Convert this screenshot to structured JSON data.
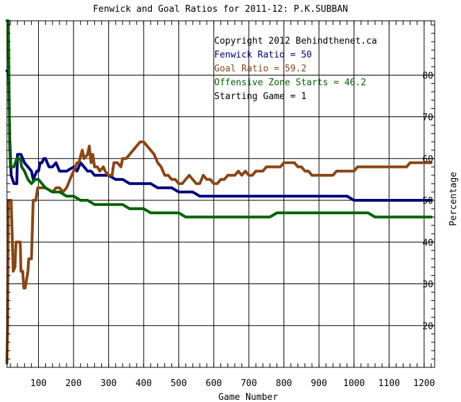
{
  "chart_data": {
    "type": "line",
    "title": "Fenwick and Goal Ratios for 2011-12: P.K.SUBBAN",
    "xlabel": "Game Number",
    "ylabel": "Percentage",
    "xlim": [
      10,
      1230
    ],
    "ylim": [
      10,
      93
    ],
    "x_ticks": [
      100,
      200,
      300,
      400,
      500,
      600,
      700,
      800,
      900,
      1000,
      1100,
      1200
    ],
    "y_ticks": [
      20,
      30,
      40,
      50,
      60,
      70,
      80
    ],
    "x_minor_step": 20,
    "y_axis_side": "right",
    "grid": true,
    "annotations": [
      {
        "text": "Copyright 2012 Behindthenet.ca",
        "color": "#000000"
      },
      {
        "text": "Fenwick Ratio = 50",
        "color": "#000080"
      },
      {
        "text": "Goal Ratio = 59.2",
        "color": "#8b4513"
      },
      {
        "text": "Offensive Zone Starts = 46.2",
        "color": "#006400"
      },
      {
        "text": "Starting Game = 1",
        "color": "#000000"
      }
    ],
    "series": [
      {
        "color": "#000080",
        "points": [
          [
            10,
            81
          ],
          [
            15,
            81
          ],
          [
            18,
            65
          ],
          [
            22,
            56
          ],
          [
            30,
            54
          ],
          [
            38,
            54
          ],
          [
            40,
            61
          ],
          [
            50,
            61
          ],
          [
            55,
            60
          ],
          [
            60,
            59
          ],
          [
            70,
            58
          ],
          [
            80,
            57
          ],
          [
            85,
            55
          ],
          [
            90,
            56
          ],
          [
            95,
            57
          ],
          [
            100,
            57
          ],
          [
            105,
            59
          ],
          [
            110,
            59
          ],
          [
            115,
            60
          ],
          [
            120,
            60
          ],
          [
            130,
            58
          ],
          [
            140,
            58
          ],
          [
            150,
            59
          ],
          [
            160,
            57
          ],
          [
            180,
            57
          ],
          [
            200,
            58
          ],
          [
            210,
            57
          ],
          [
            220,
            59
          ],
          [
            230,
            58
          ],
          [
            240,
            57
          ],
          [
            250,
            57
          ],
          [
            260,
            56
          ],
          [
            280,
            56
          ],
          [
            300,
            56
          ],
          [
            320,
            55
          ],
          [
            340,
            55
          ],
          [
            360,
            54
          ],
          [
            380,
            54
          ],
          [
            400,
            54
          ],
          [
            420,
            54
          ],
          [
            440,
            53
          ],
          [
            460,
            53
          ],
          [
            480,
            53
          ],
          [
            500,
            52
          ],
          [
            520,
            52
          ],
          [
            540,
            52
          ],
          [
            560,
            51
          ],
          [
            580,
            51
          ],
          [
            600,
            51
          ],
          [
            620,
            51
          ],
          [
            640,
            51
          ],
          [
            660,
            51
          ],
          [
            680,
            51
          ],
          [
            700,
            51
          ],
          [
            720,
            51
          ],
          [
            740,
            51
          ],
          [
            760,
            51
          ],
          [
            780,
            51
          ],
          [
            800,
            51
          ],
          [
            820,
            51
          ],
          [
            840,
            51
          ],
          [
            860,
            51
          ],
          [
            880,
            51
          ],
          [
            900,
            51
          ],
          [
            920,
            51
          ],
          [
            940,
            51
          ],
          [
            960,
            51
          ],
          [
            980,
            51
          ],
          [
            1000,
            50
          ],
          [
            1020,
            50
          ],
          [
            1040,
            50
          ],
          [
            1060,
            50
          ],
          [
            1080,
            50
          ],
          [
            1100,
            50
          ],
          [
            1120,
            50
          ],
          [
            1140,
            50
          ],
          [
            1160,
            50
          ],
          [
            1180,
            50
          ],
          [
            1200,
            50
          ],
          [
            1220,
            50
          ]
        ]
      },
      {
        "color": "#8b4513",
        "points": [
          [
            10,
            11
          ],
          [
            12,
            20
          ],
          [
            14,
            50
          ],
          [
            20,
            50
          ],
          [
            22,
            50
          ],
          [
            28,
            33
          ],
          [
            33,
            34
          ],
          [
            36,
            40
          ],
          [
            48,
            40
          ],
          [
            50,
            33
          ],
          [
            55,
            33
          ],
          [
            58,
            29
          ],
          [
            62,
            29
          ],
          [
            70,
            33
          ],
          [
            72,
            36
          ],
          [
            80,
            36
          ],
          [
            85,
            50
          ],
          [
            92,
            50
          ],
          [
            98,
            53
          ],
          [
            104,
            53
          ],
          [
            120,
            53
          ],
          [
            140,
            52
          ],
          [
            150,
            53
          ],
          [
            160,
            53
          ],
          [
            170,
            52
          ],
          [
            180,
            53
          ],
          [
            190,
            55
          ],
          [
            200,
            57
          ],
          [
            210,
            59
          ],
          [
            215,
            59
          ],
          [
            225,
            62
          ],
          [
            230,
            60
          ],
          [
            240,
            61
          ],
          [
            245,
            63
          ],
          [
            250,
            59
          ],
          [
            255,
            61
          ],
          [
            260,
            58
          ],
          [
            268,
            58
          ],
          [
            275,
            57
          ],
          [
            285,
            58
          ],
          [
            290,
            57
          ],
          [
            300,
            56
          ],
          [
            310,
            56
          ],
          [
            315,
            59
          ],
          [
            325,
            59
          ],
          [
            335,
            58
          ],
          [
            340,
            60
          ],
          [
            350,
            60
          ],
          [
            360,
            61
          ],
          [
            370,
            62
          ],
          [
            380,
            63
          ],
          [
            390,
            64
          ],
          [
            400,
            64
          ],
          [
            410,
            63
          ],
          [
            420,
            62
          ],
          [
            430,
            61
          ],
          [
            440,
            59
          ],
          [
            450,
            58
          ],
          [
            460,
            56
          ],
          [
            470,
            56
          ],
          [
            480,
            55
          ],
          [
            490,
            55
          ],
          [
            500,
            54
          ],
          [
            510,
            54
          ],
          [
            520,
            55
          ],
          [
            530,
            56
          ],
          [
            540,
            55
          ],
          [
            550,
            54
          ],
          [
            560,
            54
          ],
          [
            570,
            56
          ],
          [
            580,
            55
          ],
          [
            590,
            55
          ],
          [
            600,
            54
          ],
          [
            610,
            54
          ],
          [
            620,
            55
          ],
          [
            630,
            55
          ],
          [
            640,
            56
          ],
          [
            650,
            56
          ],
          [
            660,
            56
          ],
          [
            670,
            57
          ],
          [
            680,
            56
          ],
          [
            690,
            57
          ],
          [
            700,
            56
          ],
          [
            710,
            56
          ],
          [
            720,
            57
          ],
          [
            730,
            57
          ],
          [
            740,
            57
          ],
          [
            750,
            58
          ],
          [
            760,
            58
          ],
          [
            770,
            58
          ],
          [
            780,
            58
          ],
          [
            790,
            58
          ],
          [
            800,
            59
          ],
          [
            810,
            59
          ],
          [
            820,
            59
          ],
          [
            830,
            59
          ],
          [
            840,
            58
          ],
          [
            850,
            58
          ],
          [
            860,
            57
          ],
          [
            870,
            57
          ],
          [
            880,
            56
          ],
          [
            890,
            56
          ],
          [
            900,
            56
          ],
          [
            910,
            56
          ],
          [
            920,
            56
          ],
          [
            930,
            56
          ],
          [
            940,
            56
          ],
          [
            950,
            57
          ],
          [
            960,
            57
          ],
          [
            970,
            57
          ],
          [
            980,
            57
          ],
          [
            990,
            57
          ],
          [
            1000,
            57
          ],
          [
            1010,
            58
          ],
          [
            1020,
            58
          ],
          [
            1030,
            58
          ],
          [
            1040,
            58
          ],
          [
            1050,
            58
          ],
          [
            1060,
            58
          ],
          [
            1070,
            58
          ],
          [
            1080,
            58
          ],
          [
            1090,
            58
          ],
          [
            1100,
            58
          ],
          [
            1110,
            58
          ],
          [
            1120,
            58
          ],
          [
            1130,
            58
          ],
          [
            1140,
            58
          ],
          [
            1150,
            58
          ],
          [
            1160,
            59
          ],
          [
            1170,
            59
          ],
          [
            1180,
            59
          ],
          [
            1190,
            59
          ],
          [
            1200,
            59
          ],
          [
            1210,
            59
          ],
          [
            1220,
            59
          ]
        ]
      },
      {
        "color": "#006400",
        "points": [
          [
            10,
            93
          ],
          [
            14,
            93
          ],
          [
            18,
            63
          ],
          [
            20,
            58
          ],
          [
            26,
            58
          ],
          [
            30,
            58
          ],
          [
            38,
            60
          ],
          [
            48,
            60
          ],
          [
            52,
            58
          ],
          [
            60,
            57
          ],
          [
            70,
            55
          ],
          [
            80,
            54
          ],
          [
            90,
            55
          ],
          [
            100,
            55
          ],
          [
            120,
            53
          ],
          [
            140,
            52
          ],
          [
            160,
            52
          ],
          [
            180,
            51
          ],
          [
            200,
            51
          ],
          [
            220,
            50
          ],
          [
            240,
            50
          ],
          [
            260,
            49
          ],
          [
            280,
            49
          ],
          [
            300,
            49
          ],
          [
            320,
            49
          ],
          [
            340,
            49
          ],
          [
            360,
            48
          ],
          [
            380,
            48
          ],
          [
            400,
            48
          ],
          [
            420,
            47
          ],
          [
            440,
            47
          ],
          [
            460,
            47
          ],
          [
            480,
            47
          ],
          [
            500,
            47
          ],
          [
            520,
            46
          ],
          [
            540,
            46
          ],
          [
            560,
            46
          ],
          [
            580,
            46
          ],
          [
            600,
            46
          ],
          [
            620,
            46
          ],
          [
            640,
            46
          ],
          [
            660,
            46
          ],
          [
            680,
            46
          ],
          [
            700,
            46
          ],
          [
            720,
            46
          ],
          [
            740,
            46
          ],
          [
            760,
            46
          ],
          [
            780,
            47
          ],
          [
            800,
            47
          ],
          [
            820,
            47
          ],
          [
            840,
            47
          ],
          [
            860,
            47
          ],
          [
            880,
            47
          ],
          [
            900,
            47
          ],
          [
            920,
            47
          ],
          [
            940,
            47
          ],
          [
            960,
            47
          ],
          [
            980,
            47
          ],
          [
            1000,
            47
          ],
          [
            1020,
            47
          ],
          [
            1040,
            47
          ],
          [
            1060,
            46
          ],
          [
            1080,
            46
          ],
          [
            1100,
            46
          ],
          [
            1120,
            46
          ],
          [
            1140,
            46
          ],
          [
            1160,
            46
          ],
          [
            1180,
            46
          ],
          [
            1200,
            46
          ],
          [
            1220,
            46
          ]
        ]
      }
    ]
  }
}
